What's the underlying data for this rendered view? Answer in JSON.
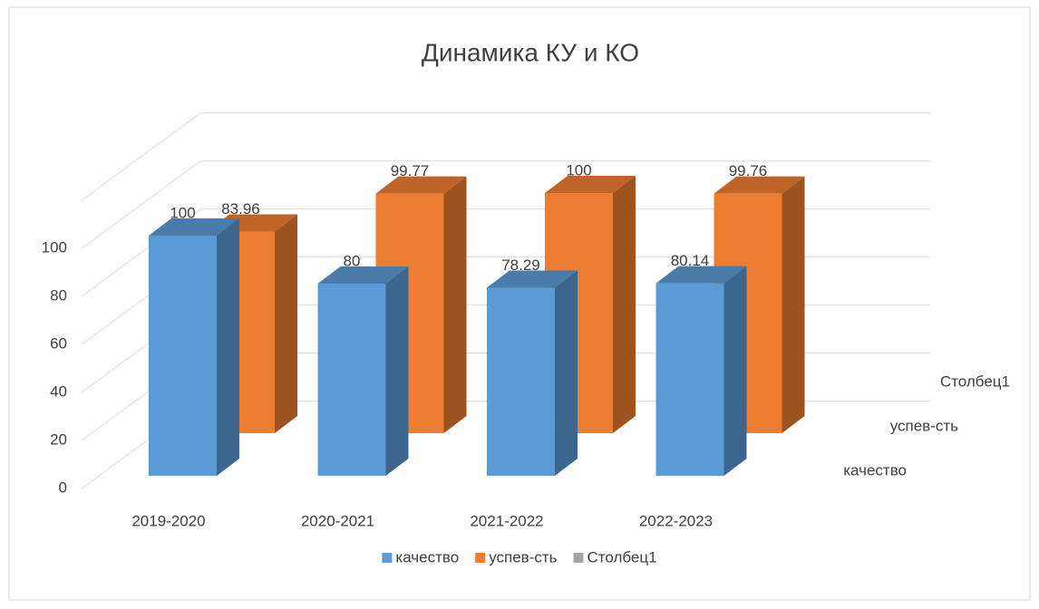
{
  "chart_data": {
    "type": "bar3d",
    "title": "Динамика КУ и КО",
    "categories": [
      "2019-2020",
      "2020-2021",
      "2021-2022",
      "2022-2023"
    ],
    "series": [
      {
        "name": "качество",
        "color": "#5b9bd5",
        "values": [
          100,
          80,
          78.29,
          80.14
        ]
      },
      {
        "name": "успев-сть",
        "color": "#ed7d31",
        "values": [
          83.96,
          99.77,
          100,
          99.76
        ]
      },
      {
        "name": "Столбец1",
        "color": "#a5a5a5",
        "values": [
          null,
          null,
          null,
          null
        ]
      }
    ],
    "ylim": [
      0,
      120
    ],
    "yticks": [
      0,
      20,
      40,
      60,
      80,
      100
    ],
    "grid": true,
    "legend": "bottom"
  }
}
